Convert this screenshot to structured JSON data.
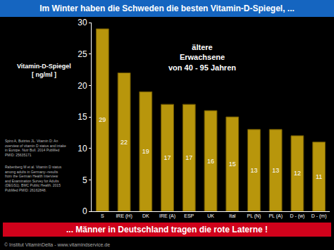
{
  "chart_data": {
    "type": "bar",
    "title": "Im Winter haben die Schweden die besten Vitamin-D-Spiegel, ...",
    "y_label": [
      "Vitamin-D-Spiegel",
      "[ ng/ml ]"
    ],
    "annotations": [
      [
        "ältere",
        "Erwachsene",
        "von 40 - 95 Jahren"
      ]
    ],
    "footer": "... Männer in Deutschland tragen die rote Laterne !",
    "sources": [
      [
        "Spiro A, Buttriss JL. Vitamin D: An",
        "overview of vitamin D status and intake",
        "in Europe. Nutr Bull. 2014 PubMed",
        "PMID: 25635171"
      ],
      [
        "Rabenberg M et al. Vitamin D status",
        "among adults in Germany--results",
        "from the German Health Interview",
        "and Examination Survey for Adults",
        "(DEGS1). BMC Public Health. 2015",
        "PubMed PMID: 26162848."
      ]
    ],
    "credit": "© Institut VitaminDelta - www.vitamindservice.de",
    "categories": [
      "S",
      "IRE (H)",
      "DK",
      "IRE (A)",
      "ESP",
      "UK",
      "Ital",
      "PL (N)",
      "PL (A)",
      "D - (w)",
      "D - (m)"
    ],
    "values": [
      29,
      22,
      19,
      17,
      17,
      16,
      15,
      13,
      13,
      12,
      11
    ],
    "color": "#b8960c",
    "ylim": [
      0,
      30
    ],
    "yticks": [
      0,
      5,
      10,
      15,
      20,
      25,
      30
    ],
    "grid": false,
    "data_labels": true
  }
}
